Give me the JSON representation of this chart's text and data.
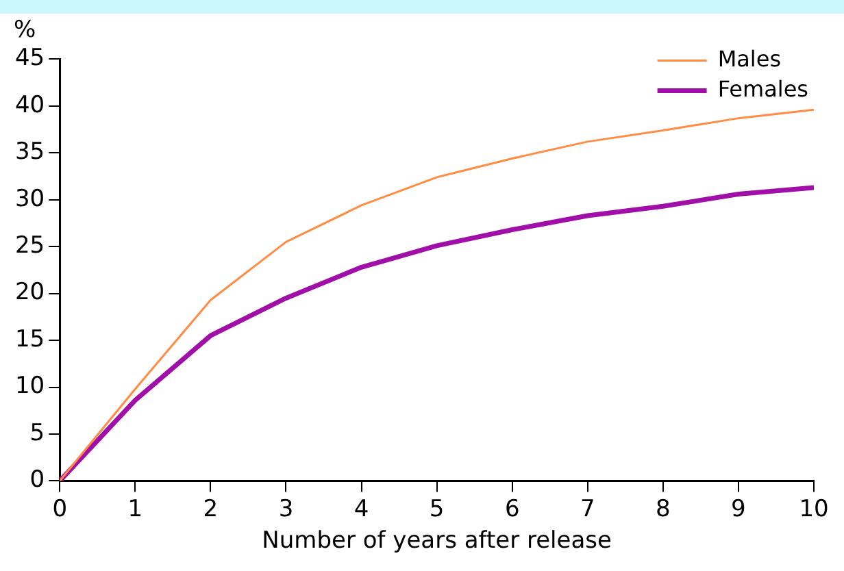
{
  "chart_data": {
    "type": "line",
    "ylabel": "%",
    "xlabel": "Number of years after release",
    "x": [
      0,
      1,
      2,
      3,
      4,
      5,
      6,
      7,
      8,
      9,
      10
    ],
    "series": [
      {
        "name": "Males",
        "color": "#ff8c42",
        "values": [
          0,
          9.8,
          19.3,
          25.5,
          29.4,
          32.4,
          34.4,
          36.2,
          37.4,
          38.7,
          39.6
        ]
      },
      {
        "name": "Females",
        "color": "#a010a8",
        "values": [
          0,
          8.6,
          15.5,
          19.5,
          22.8,
          25.1,
          26.8,
          28.3,
          29.3,
          30.6,
          31.3
        ]
      }
    ],
    "xlim": [
      0,
      10
    ],
    "xticks": [
      0,
      1,
      2,
      3,
      4,
      5,
      6,
      7,
      8,
      9,
      10
    ],
    "ylim": [
      0,
      45
    ],
    "yticks": [
      0,
      5,
      10,
      15,
      20,
      25,
      30,
      35,
      40,
      45
    ],
    "grid": false,
    "legend": "top right",
    "marker": "none",
    "line_style": "solid"
  }
}
